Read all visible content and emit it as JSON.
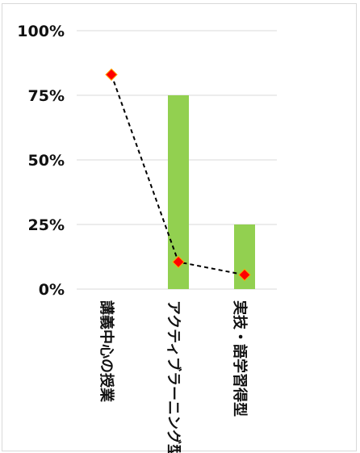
{
  "chart_data": {
    "type": "bar",
    "categories": [
      "講義中心の授業",
      "アクティブラーニング型",
      "実技・語学習得型"
    ],
    "series": [
      {
        "type": "bar",
        "values": [
          0,
          75,
          25
        ],
        "color": "#92d050"
      },
      {
        "type": "line",
        "values": [
          83,
          10.5,
          5.5
        ],
        "color": "#000000",
        "line_style": "dashed",
        "marker": "diamond",
        "marker_color": "#ff0000",
        "marker_edge_color": "#ffa500"
      }
    ],
    "yticks": [
      "0%",
      "25%",
      "50%",
      "75%",
      "100%"
    ],
    "ylim": [
      0,
      100
    ],
    "grid": true,
    "legend": "none"
  }
}
